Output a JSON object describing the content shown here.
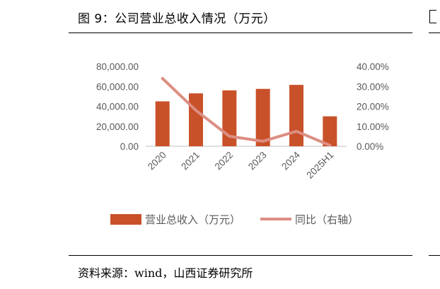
{
  "figure": {
    "title": "图 9：公司营业总收入情况（万元）",
    "source": "资料来源：wind，山西证券研究所"
  },
  "colors": {
    "bar": "#C9512A",
    "line": "#DC8E82",
    "axis": "#BFBFBF",
    "tick_text": "#595959"
  },
  "chart_data": {
    "type": "bar",
    "categories": [
      "2020",
      "2021",
      "2022",
      "2023",
      "2024",
      "2025H1"
    ],
    "series": [
      {
        "name": "营业总收入（万元）",
        "type": "bar",
        "axis": "left",
        "values": [
          45000,
          53000,
          56000,
          57500,
          61500,
          30000
        ]
      },
      {
        "name": "同比（右轴）",
        "type": "line",
        "axis": "right",
        "values": [
          34.0,
          18.0,
          5.0,
          2.5,
          7.5,
          0.5
        ]
      }
    ],
    "y_left": {
      "min": 0,
      "max": 80000,
      "ticks": [
        "0.00",
        "20,000.00",
        "40,000.00",
        "60,000.00",
        "80,000.00"
      ]
    },
    "y_right": {
      "min": 0,
      "max": 40,
      "ticks": [
        "0.00%",
        "10.00%",
        "20.00%",
        "30.00%",
        "40.00%"
      ]
    },
    "grid": false,
    "legend_position": "bottom"
  }
}
